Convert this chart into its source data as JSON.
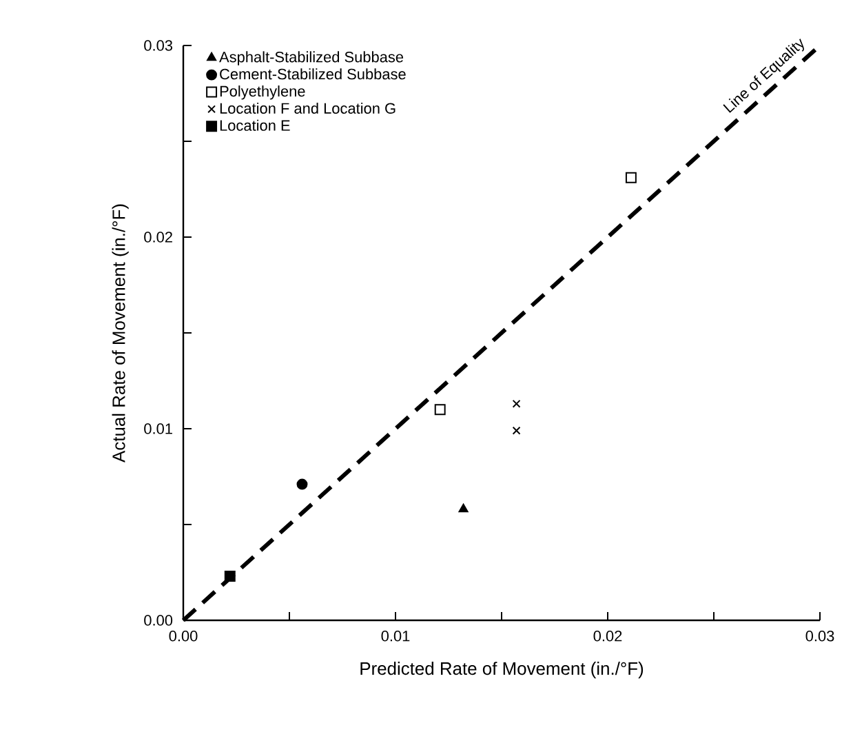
{
  "chart_data": {
    "type": "scatter",
    "xlabel": "Predicted Rate of Movement (in./°F)",
    "ylabel": "Actual Rate of Movement (in./°F)",
    "xlim": [
      0,
      0.03
    ],
    "ylim": [
      0,
      0.03
    ],
    "xticks": [
      {
        "value": 0,
        "label": "0.00"
      },
      {
        "value": 0.005,
        "label": null
      },
      {
        "value": 0.01,
        "label": "0.01"
      },
      {
        "value": 0.015,
        "label": null
      },
      {
        "value": 0.02,
        "label": "0.02"
      },
      {
        "value": 0.025,
        "label": null
      },
      {
        "value": 0.03,
        "label": "0.03"
      }
    ],
    "yticks": [
      {
        "value": 0,
        "label": "0.00"
      },
      {
        "value": 0.005,
        "label": null
      },
      {
        "value": 0.01,
        "label": "0.01"
      },
      {
        "value": 0.015,
        "label": null
      },
      {
        "value": 0.02,
        "label": "0.02"
      },
      {
        "value": 0.025,
        "label": null
      },
      {
        "value": 0.03,
        "label": "0.03"
      }
    ],
    "grid": false,
    "legend": "top left",
    "series": [
      {
        "name": "Asphalt-Stabilized Subbase",
        "color": "#000000",
        "marker": "triangle",
        "x": [
          0.0132
        ],
        "values": [
          0.0058
        ]
      },
      {
        "name": "Cement-Stabilized Subbase",
        "color": "#000000",
        "marker": "circle",
        "x": [
          0.0056
        ],
        "values": [
          0.0071
        ]
      },
      {
        "name": "Polyethylene",
        "color": "#ffffff",
        "marker": "square",
        "x": [
          0.0121,
          0.0211
        ],
        "values": [
          0.011,
          0.0231
        ]
      },
      {
        "name": "Location F and Location G",
        "color": "#000000",
        "marker": "cross",
        "x": [
          0.0157,
          0.0157
        ],
        "values": [
          0.0113,
          0.0099
        ]
      },
      {
        "name": "Location E",
        "color": "#000000",
        "marker": "square",
        "x": [
          0.0022
        ],
        "values": [
          0.0023
        ]
      },
      {
        "name": "Line of Equality",
        "type": "line",
        "line_style": "dashed",
        "color": "#000000",
        "marker": "none",
        "x": [
          0,
          0.03
        ],
        "values": [
          0,
          0.03
        ]
      }
    ]
  }
}
